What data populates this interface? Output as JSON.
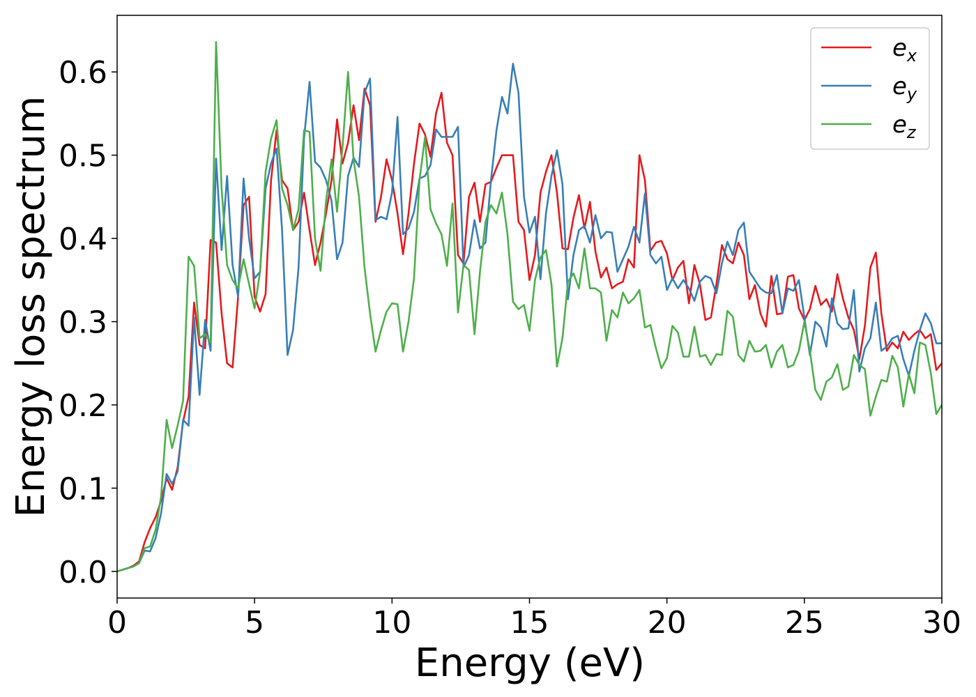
{
  "chart_data": {
    "type": "line",
    "xlabel": "Energy (eV)",
    "ylabel": "Energy loss spectrum",
    "xlim": [
      0,
      30
    ],
    "ylim": [
      -0.032,
      0.668
    ],
    "xticks": [
      0,
      5,
      10,
      15,
      20,
      25,
      30
    ],
    "yticks": [
      {
        "value": 0,
        "label": "0.0"
      },
      0.1,
      0.2,
      0.3,
      0.4,
      0.5,
      0.6
    ],
    "legend": "upper right",
    "x": [
      0,
      0.2,
      0.4,
      0.6,
      0.8,
      1,
      1.2,
      1.4,
      1.6,
      1.8,
      2,
      2.2,
      2.4,
      2.6,
      2.8,
      3,
      3.2,
      3.4,
      3.6,
      3.8,
      4,
      4.2,
      4.4,
      4.6,
      4.8,
      5,
      5.2,
      5.4,
      5.6,
      5.8,
      6,
      6.2,
      6.4,
      6.6,
      6.8,
      7,
      7.2,
      7.4,
      7.6,
      7.8,
      8,
      8.2,
      8.4,
      8.6,
      8.8,
      9,
      9.2,
      9.4,
      9.6,
      9.8,
      10,
      10.2,
      10.4,
      10.6,
      10.8,
      11,
      11.2,
      11.4,
      11.6,
      11.8,
      12,
      12.2,
      12.4,
      12.6,
      12.8,
      13,
      13.2,
      13.4,
      13.6,
      13.8,
      14,
      14.2,
      14.4,
      14.6,
      14.8,
      15,
      15.2,
      15.4,
      15.6,
      15.8,
      16,
      16.2,
      16.4,
      16.6,
      16.8,
      17,
      17.2,
      17.4,
      17.6,
      17.8,
      18,
      18.2,
      18.4,
      18.6,
      18.8,
      19,
      19.2,
      19.4,
      19.6,
      19.8,
      20,
      20.2,
      20.4,
      20.6,
      20.8,
      21,
      21.2,
      21.4,
      21.6,
      21.8,
      22,
      22.2,
      22.4,
      22.6,
      22.8,
      23,
      23.2,
      23.4,
      23.6,
      23.8,
      24,
      24.2,
      24.4,
      24.6,
      24.8,
      25,
      25.2,
      25.4,
      25.6,
      25.8,
      26,
      26.2,
      26.4,
      26.6,
      26.8,
      27,
      27.2,
      27.4,
      27.6,
      27.8,
      28,
      28.2,
      28.4,
      28.6,
      28.8,
      29,
      29.2,
      29.4,
      29.6,
      29.8,
      30
    ],
    "series": [
      {
        "name": "ex",
        "color": "#e41a1c",
        "values": [
          0,
          0.002,
          0.004,
          0.007,
          0.012,
          0.035,
          0.052,
          0.065,
          0.085,
          0.112,
          0.098,
          0.125,
          0.18,
          0.21,
          0.323,
          0.272,
          0.268,
          0.398,
          0.395,
          0.31,
          0.25,
          0.245,
          0.33,
          0.44,
          0.45,
          0.33,
          0.312,
          0.333,
          0.47,
          0.53,
          0.47,
          0.46,
          0.41,
          0.42,
          0.455,
          0.41,
          0.368,
          0.395,
          0.43,
          0.47,
          0.543,
          0.49,
          0.515,
          0.56,
          0.518,
          0.58,
          0.56,
          0.42,
          0.45,
          0.495,
          0.47,
          0.43,
          0.381,
          0.43,
          0.49,
          0.538,
          0.525,
          0.498,
          0.55,
          0.575,
          0.515,
          0.5,
          0.38,
          0.37,
          0.45,
          0.467,
          0.42,
          0.465,
          0.468,
          0.485,
          0.5,
          0.5,
          0.5,
          0.42,
          0.41,
          0.35,
          0.38,
          0.455,
          0.48,
          0.5,
          0.455,
          0.388,
          0.387,
          0.425,
          0.452,
          0.412,
          0.444,
          0.384,
          0.353,
          0.365,
          0.34,
          0.345,
          0.348,
          0.375,
          0.365,
          0.5,
          0.47,
          0.385,
          0.395,
          0.397,
          0.382,
          0.35,
          0.365,
          0.373,
          0.322,
          0.368,
          0.345,
          0.302,
          0.305,
          0.345,
          0.392,
          0.375,
          0.37,
          0.395,
          0.38,
          0.327,
          0.344,
          0.31,
          0.294,
          0.355,
          0.309,
          0.31,
          0.354,
          0.356,
          0.316,
          0.302,
          0.315,
          0.343,
          0.32,
          0.327,
          0.312,
          0.357,
          0.328,
          0.305,
          0.29,
          0.255,
          0.295,
          0.365,
          0.383,
          0.31,
          0.265,
          0.275,
          0.268,
          0.288,
          0.278,
          0.285,
          0.29,
          0.28,
          0.285,
          0.242,
          0.25
        ]
      },
      {
        "name": "ey",
        "color": "#377eb8",
        "values": [
          0,
          0.002,
          0.004,
          0.006,
          0.01,
          0.025,
          0.024,
          0.04,
          0.07,
          0.117,
          0.105,
          0.12,
          0.182,
          0.175,
          0.305,
          0.212,
          0.302,
          0.265,
          0.496,
          0.386,
          0.475,
          0.368,
          0.33,
          0.472,
          0.4,
          0.352,
          0.36,
          0.46,
          0.49,
          0.508,
          0.41,
          0.26,
          0.29,
          0.365,
          0.52,
          0.588,
          0.492,
          0.485,
          0.47,
          0.445,
          0.375,
          0.395,
          0.475,
          0.497,
          0.486,
          0.575,
          0.592,
          0.422,
          0.426,
          0.423,
          0.455,
          0.546,
          0.405,
          0.412,
          0.432,
          0.472,
          0.475,
          0.488,
          0.531,
          0.522,
          0.522,
          0.522,
          0.534,
          0.365,
          0.38,
          0.422,
          0.388,
          0.395,
          0.47,
          0.53,
          0.57,
          0.55,
          0.61,
          0.575,
          0.45,
          0.407,
          0.426,
          0.351,
          0.43,
          0.475,
          0.506,
          0.465,
          0.327,
          0.38,
          0.41,
          0.415,
          0.395,
          0.428,
          0.4,
          0.408,
          0.407,
          0.36,
          0.375,
          0.39,
          0.414,
          0.395,
          0.454,
          0.38,
          0.37,
          0.378,
          0.338,
          0.352,
          0.34,
          0.35,
          0.34,
          0.325,
          0.348,
          0.355,
          0.352,
          0.334,
          0.37,
          0.396,
          0.38,
          0.41,
          0.419,
          0.36,
          0.35,
          0.34,
          0.335,
          0.334,
          0.356,
          0.31,
          0.34,
          0.337,
          0.35,
          0.305,
          0.26,
          0.3,
          0.293,
          0.27,
          0.328,
          0.298,
          0.291,
          0.292,
          0.338,
          0.24,
          0.268,
          0.28,
          0.323,
          0.265,
          0.27,
          0.28,
          0.283,
          0.255,
          0.235,
          0.265,
          0.29,
          0.31,
          0.298,
          0.274,
          0.274
        ]
      },
      {
        "name": "ez",
        "color": "#4daf4a",
        "values": [
          0,
          0.002,
          0.004,
          0.006,
          0.01,
          0.028,
          0.03,
          0.05,
          0.09,
          0.182,
          0.148,
          0.175,
          0.205,
          0.378,
          0.367,
          0.28,
          0.285,
          0.275,
          0.636,
          0.46,
          0.368,
          0.35,
          0.34,
          0.375,
          0.345,
          0.316,
          0.36,
          0.48,
          0.52,
          0.542,
          0.46,
          0.44,
          0.41,
          0.435,
          0.53,
          0.528,
          0.4,
          0.361,
          0.445,
          0.495,
          0.432,
          0.51,
          0.6,
          0.495,
          0.45,
          0.365,
          0.31,
          0.264,
          0.29,
          0.312,
          0.322,
          0.321,
          0.264,
          0.3,
          0.352,
          0.47,
          0.522,
          0.435,
          0.418,
          0.405,
          0.367,
          0.442,
          0.311,
          0.368,
          0.362,
          0.285,
          0.36,
          0.42,
          0.44,
          0.43,
          0.455,
          0.405,
          0.324,
          0.315,
          0.32,
          0.289,
          0.35,
          0.377,
          0.386,
          0.345,
          0.246,
          0.28,
          0.348,
          0.358,
          0.34,
          0.388,
          0.34,
          0.34,
          0.335,
          0.277,
          0.314,
          0.305,
          0.335,
          0.322,
          0.328,
          0.338,
          0.293,
          0.296,
          0.268,
          0.244,
          0.256,
          0.295,
          0.287,
          0.258,
          0.258,
          0.294,
          0.258,
          0.26,
          0.248,
          0.261,
          0.26,
          0.313,
          0.306,
          0.26,
          0.252,
          0.277,
          0.264,
          0.265,
          0.272,
          0.245,
          0.264,
          0.272,
          0.245,
          0.248,
          0.265,
          0.3,
          0.265,
          0.218,
          0.206,
          0.228,
          0.233,
          0.249,
          0.218,
          0.222,
          0.26,
          0.248,
          0.243,
          0.187,
          0.21,
          0.23,
          0.228,
          0.259,
          0.245,
          0.198,
          0.237,
          0.214,
          0.275,
          0.272,
          0.238,
          0.189,
          0.2
        ]
      }
    ]
  }
}
